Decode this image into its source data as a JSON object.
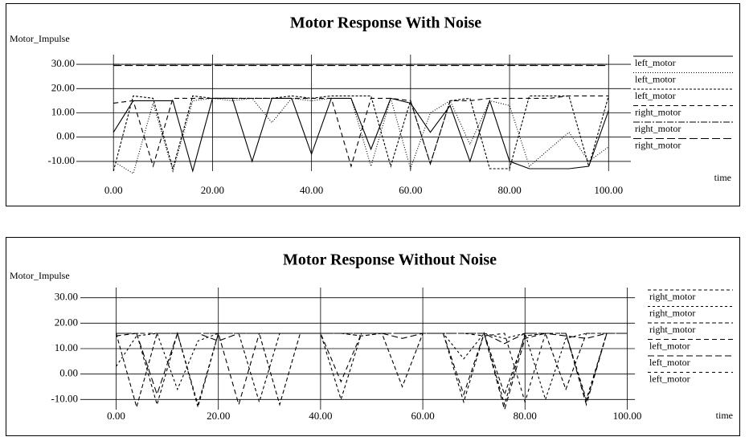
{
  "chart_data": [
    {
      "type": "line",
      "title": "Motor Response With Noise",
      "y_label": "Motor_Impulse",
      "x_label": "time",
      "x": [
        0,
        4,
        8,
        12,
        16,
        20,
        24,
        28,
        32,
        36,
        40,
        44,
        48,
        52,
        56,
        60,
        64,
        68,
        72,
        76,
        80,
        84,
        88,
        92,
        96,
        100
      ],
      "xlim": [
        -7.5,
        104.5
      ],
      "ylim": [
        -14,
        34
      ],
      "xticks": [
        {
          "value": 0,
          "label": "0.00"
        },
        {
          "value": 20,
          "label": "20.00"
        },
        {
          "value": 40,
          "label": "40.00"
        },
        {
          "value": 60,
          "label": "60.00"
        },
        {
          "value": 80,
          "label": "80.00"
        },
        {
          "value": 100,
          "label": "100.00"
        }
      ],
      "yticks": [
        {
          "value": 30,
          "label": "30.00"
        },
        {
          "value": 20,
          "label": "20.00"
        },
        {
          "value": 10,
          "label": "10.00"
        },
        {
          "value": 0,
          "label": "0.00"
        },
        {
          "value": -10,
          "label": "-10.00"
        }
      ],
      "grid": true,
      "series": [
        {
          "name": "left_motor",
          "color": "#000000",
          "dash": "none",
          "values": [
            2,
            15,
            15,
            15,
            -14,
            16,
            16,
            -10,
            16,
            16,
            -7,
            16,
            16,
            -5,
            16,
            14,
            2,
            13,
            -10,
            15,
            -10,
            -13,
            -13,
            -13,
            -12,
            11
          ]
        },
        {
          "name": "left_motor",
          "color": "#000000",
          "dash": "1 2",
          "values": [
            -10,
            -15,
            14,
            -14,
            15,
            16,
            15,
            16,
            6,
            16,
            15,
            16,
            16,
            -12,
            16,
            -13,
            10,
            15,
            -3,
            15,
            13,
            -12,
            -5,
            2,
            -10,
            -4
          ]
        },
        {
          "name": "left_motor",
          "color": "#000000",
          "dash": "3 2",
          "values": [
            -14,
            17,
            16,
            -13,
            17,
            16,
            16,
            16,
            16,
            17,
            16,
            17,
            17,
            17,
            -12,
            15,
            -11,
            15,
            16,
            -13,
            -13,
            17,
            17,
            17,
            -12,
            17
          ]
        },
        {
          "name": "right_motor",
          "color": "#000000",
          "dash": "6 4",
          "values": [
            14,
            15,
            -12,
            16,
            16,
            16,
            16,
            16,
            16,
            16,
            16,
            16,
            -12,
            16,
            16,
            15,
            -11,
            15,
            15,
            16,
            16,
            16,
            16,
            17,
            17,
            17
          ]
        },
        {
          "name": "right_motor",
          "color": "#000000",
          "dash": "8 2 2 2",
          "values": [
            30,
            30,
            30,
            30,
            30,
            30,
            30,
            30,
            30,
            30,
            30,
            30,
            30,
            30,
            30,
            30,
            30,
            30,
            30,
            30,
            30,
            30,
            30,
            30,
            30,
            30
          ]
        },
        {
          "name": "right_motor",
          "color": "#000000",
          "dash": "10 4",
          "values": [
            29.5,
            29.5,
            29.5,
            29.5,
            29.5,
            29.5,
            29.5,
            29.5,
            29.5,
            29.5,
            29.5,
            29.5,
            29.5,
            29.5,
            29.5,
            29.5,
            29.5,
            29.5,
            29.5,
            29.5,
            29.5,
            29.5,
            29.5,
            29.5,
            29.5,
            29.5
          ]
        }
      ]
    },
    {
      "type": "line",
      "title": "Motor Response Without Noise",
      "y_label": "Motor_Impulse",
      "x_label": "time",
      "x": [
        0,
        4,
        8,
        12,
        16,
        20,
        24,
        28,
        32,
        36,
        40,
        44,
        48,
        52,
        56,
        60,
        64,
        68,
        72,
        76,
        80,
        84,
        88,
        92,
        96,
        100
      ],
      "xlim": [
        -7,
        101.5
      ],
      "ylim": [
        -14,
        34
      ],
      "xticks": [
        {
          "value": 0,
          "label": "0.00"
        },
        {
          "value": 20,
          "label": "20.00"
        },
        {
          "value": 40,
          "label": "40.00"
        },
        {
          "value": 60,
          "label": "60.00"
        },
        {
          "value": 80,
          "label": "80.00"
        },
        {
          "value": 100,
          "label": "100.00"
        }
      ],
      "yticks": [
        {
          "value": 30,
          "label": "30.00"
        },
        {
          "value": 20,
          "label": "20.00"
        },
        {
          "value": 10,
          "label": "10.00"
        },
        {
          "value": 0,
          "label": "0.00"
        },
        {
          "value": -10,
          "label": "-10.00"
        }
      ],
      "grid": true,
      "series": [
        {
          "name": "right_motor",
          "color": "#000000",
          "dash": "4 3",
          "values": [
            16,
            16,
            -12,
            16,
            -13,
            16,
            16,
            -11,
            16,
            16,
            16,
            -10,
            16,
            16,
            16,
            16,
            16,
            -11,
            16,
            -12,
            16,
            16,
            16,
            -11,
            16,
            16
          ]
        },
        {
          "name": "right_motor",
          "color": "#000000",
          "dash": "3 3",
          "values": [
            3,
            15,
            16,
            -6,
            13,
            16,
            16,
            16,
            16,
            16,
            16,
            16,
            16,
            16,
            16,
            16,
            16,
            6,
            16,
            14,
            16,
            -10,
            14,
            16,
            16,
            16
          ]
        },
        {
          "name": "right_motor",
          "color": "#000000",
          "dash": "5 3",
          "values": [
            16,
            -13,
            16,
            16,
            16,
            16,
            16,
            16,
            -12,
            16,
            16,
            16,
            15,
            16,
            -5,
            16,
            16,
            16,
            16,
            -8,
            15,
            16,
            -6,
            16,
            16,
            16
          ]
        },
        {
          "name": "left_motor",
          "color": "#000000",
          "dash": "6 4",
          "values": [
            15,
            16,
            16,
            16,
            16,
            16,
            -12,
            16,
            16,
            16,
            16,
            -3,
            16,
            16,
            16,
            16,
            16,
            -8,
            16,
            -14,
            14,
            16,
            16,
            -12,
            16,
            16
          ]
        },
        {
          "name": "left_motor",
          "color": "#000000",
          "dash": "8 4",
          "values": [
            16,
            16,
            -8,
            16,
            16,
            13,
            16,
            16,
            16,
            16,
            16,
            16,
            16,
            16,
            14,
            16,
            16,
            16,
            16,
            12,
            16,
            16,
            15,
            14,
            16,
            16
          ]
        },
        {
          "name": "left_motor",
          "color": "#000000",
          "dash": "4 4",
          "values": [
            16,
            16,
            16,
            16,
            -12,
            16,
            16,
            16,
            16,
            16,
            16,
            16,
            16,
            16,
            16,
            16,
            16,
            16,
            15,
            16,
            -11,
            16,
            16,
            -10,
            16,
            16
          ]
        }
      ]
    }
  ]
}
